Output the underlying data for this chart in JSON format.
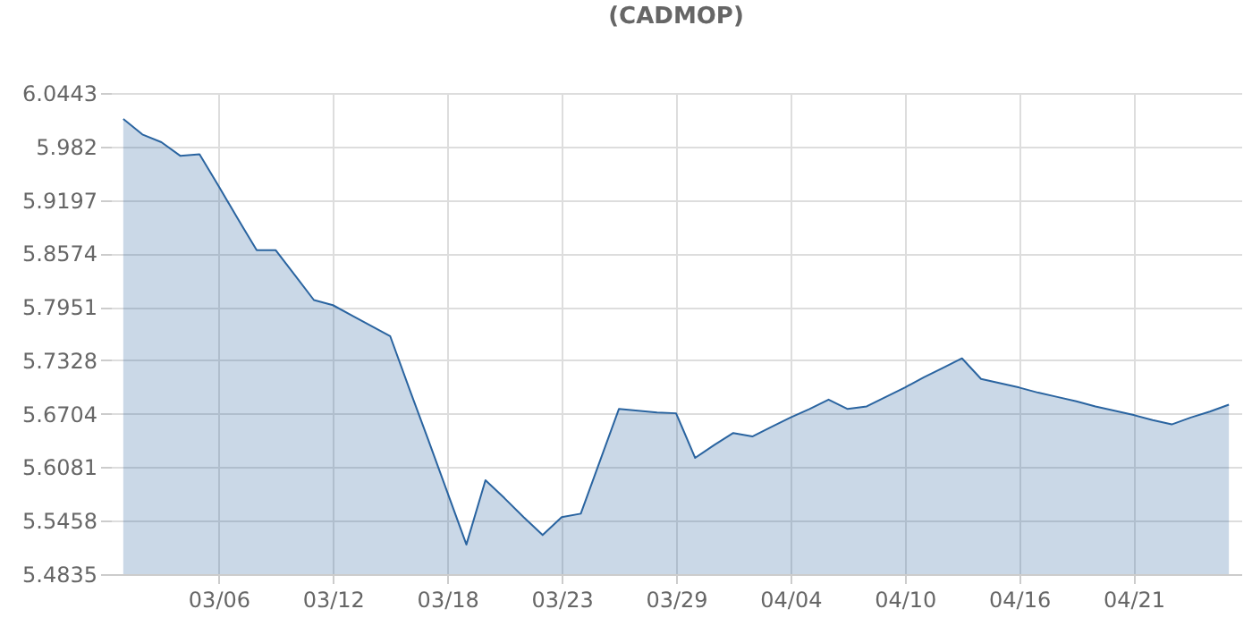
{
  "chart_data": {
    "type": "area",
    "title": "(CADMOP)",
    "categories": [
      null,
      null,
      null,
      null,
      null,
      "03/06",
      null,
      null,
      null,
      null,
      null,
      "03/12",
      null,
      null,
      null,
      null,
      null,
      "03/18",
      null,
      null,
      null,
      null,
      null,
      "03/23",
      null,
      null,
      null,
      null,
      null,
      "03/29",
      null,
      null,
      null,
      null,
      null,
      "04/04",
      null,
      null,
      null,
      null,
      null,
      "04/10",
      null,
      null,
      null,
      null,
      null,
      "04/16",
      null,
      null,
      null,
      null,
      null,
      "04/21",
      null,
      null,
      null,
      null,
      null
    ],
    "series": [
      {
        "color": "#2a64a0",
        "values": [
          6.014,
          5.996,
          5.987,
          5.971,
          5.973,
          5.936,
          5.898,
          5.861,
          5.861,
          5.832,
          5.803,
          5.797,
          5.785,
          5.773,
          5.761,
          5.7,
          5.64,
          5.579,
          5.518,
          5.593,
          5.572,
          5.55,
          5.529,
          5.55,
          5.554,
          5.615,
          5.676,
          5.674,
          5.672,
          5.671,
          5.619,
          5.634,
          5.648,
          5.644,
          5.655,
          5.666,
          5.676,
          5.687,
          5.676,
          5.679,
          5.69,
          5.701,
          5.713,
          5.724,
          5.735,
          5.711,
          5.706,
          5.701,
          5.695,
          5.69,
          5.685,
          5.679,
          5.674,
          5.669,
          5.663,
          5.658,
          5.666,
          5.673,
          5.681
        ]
      }
    ],
    "ylim": [
      5.4835,
      6.0443
    ],
    "yticks": [
      5.4835,
      5.5458,
      5.6081,
      5.6704,
      5.7328,
      5.7951,
      5.8574,
      5.9197,
      5.982,
      6.0443
    ],
    "grid": true
  }
}
